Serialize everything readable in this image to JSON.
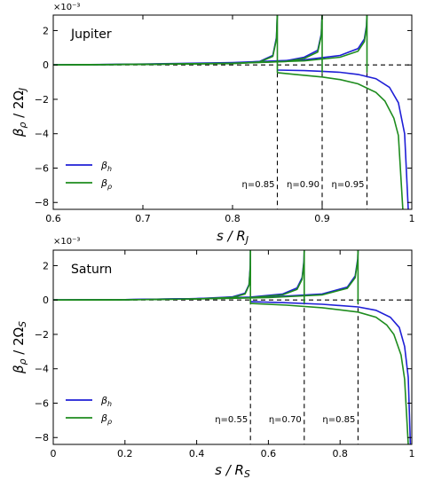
{
  "chart_data": [
    {
      "type": "line",
      "planet_label": "Jupiter",
      "xlabel": "s / R_J",
      "ylabel": "β_ρ / 2Ω_J",
      "multiplier": "×10⁻³",
      "xlim": [
        0.6,
        1.0
      ],
      "ylim": [
        -8.4,
        2.9
      ],
      "xticks": [
        0.6,
        0.7,
        0.8,
        0.9,
        1.0
      ],
      "xtick_labels": [
        "0.6",
        "0.7",
        "0.8",
        "0.9",
        "1"
      ],
      "yticks": [
        2,
        0,
        -2,
        -4,
        -6,
        -8
      ],
      "ytick_labels": [
        "2",
        "0",
        "−2",
        "−4",
        "−6",
        "−8"
      ],
      "legend_position": "lower-left",
      "series": [
        {
          "name": "β_h",
          "color": "#1f1fd6"
        },
        {
          "name": "β_ρ",
          "color": "#1e8c1e"
        }
      ],
      "eta_values": [
        0.85,
        0.9,
        0.95
      ],
      "eta_labels": [
        "η=0.85",
        "η=0.90",
        "η=0.95"
      ],
      "curves": {
        "beta_h_below_eta": [
          {
            "x": [
              0.6,
              0.7,
              0.8,
              0.83,
              0.845,
              0.849,
              0.8499
            ],
            "y": [
              0.0,
              0.03,
              0.1,
              0.2,
              0.55,
              1.6,
              2.9
            ]
          },
          {
            "x": [
              0.6,
              0.7,
              0.8,
              0.86,
              0.88,
              0.895,
              0.899,
              0.8999
            ],
            "y": [
              0.0,
              0.04,
              0.12,
              0.25,
              0.45,
              0.85,
              1.8,
              2.9
            ]
          },
          {
            "x": [
              0.6,
              0.7,
              0.8,
              0.88,
              0.92,
              0.94,
              0.947,
              0.9495,
              0.9499
            ],
            "y": [
              0.0,
              0.05,
              0.14,
              0.3,
              0.55,
              0.95,
              1.5,
              2.3,
              2.9
            ]
          }
        ],
        "beta_h_above_eta": {
          "x": [
            0.85,
            0.88,
            0.9,
            0.92,
            0.94,
            0.96,
            0.975,
            0.985,
            0.992,
            0.996
          ],
          "y": [
            -0.3,
            -0.33,
            -0.37,
            -0.43,
            -0.55,
            -0.8,
            -1.3,
            -2.2,
            -4.0,
            -8.4
          ]
        },
        "beta_rho_below_eta": [
          {
            "x": [
              0.6,
              0.7,
              0.8,
              0.83,
              0.845,
              0.849,
              0.8499
            ],
            "y": [
              0.0,
              0.03,
              0.08,
              0.17,
              0.5,
              1.5,
              2.9
            ]
          },
          {
            "x": [
              0.6,
              0.7,
              0.8,
              0.86,
              0.88,
              0.895,
              0.899,
              0.8999
            ],
            "y": [
              0.0,
              0.03,
              0.09,
              0.2,
              0.38,
              0.75,
              1.7,
              2.9
            ]
          },
          {
            "x": [
              0.6,
              0.7,
              0.8,
              0.88,
              0.92,
              0.94,
              0.947,
              0.9495,
              0.9499
            ],
            "y": [
              0.0,
              0.04,
              0.1,
              0.24,
              0.45,
              0.8,
              1.35,
              2.2,
              2.9
            ]
          }
        ],
        "beta_rho_above_eta": {
          "x": [
            0.85,
            0.87,
            0.9,
            0.92,
            0.94,
            0.96,
            0.97,
            0.98,
            0.985,
            0.99
          ],
          "y": [
            -0.45,
            -0.55,
            -0.7,
            -0.85,
            -1.1,
            -1.6,
            -2.1,
            -3.1,
            -4.1,
            -8.4
          ]
        }
      }
    },
    {
      "type": "line",
      "planet_label": "Saturn",
      "xlabel": "s / R_S",
      "ylabel": "β_ρ / 2Ω_S",
      "multiplier": "×10⁻³",
      "xlim": [
        0.0,
        1.0
      ],
      "ylim": [
        -8.4,
        2.9
      ],
      "xticks": [
        0.0,
        0.2,
        0.4,
        0.6,
        0.8,
        1.0
      ],
      "xtick_labels": [
        "0",
        "0.2",
        "0.4",
        "0.6",
        "0.8",
        "1"
      ],
      "yticks": [
        2,
        0,
        -2,
        -4,
        -6,
        -8
      ],
      "ytick_labels": [
        "2",
        "0",
        "−2",
        "−4",
        "−6",
        "−8"
      ],
      "legend_position": "lower-left",
      "series": [
        {
          "name": "β_h",
          "color": "#1f1fd6"
        },
        {
          "name": "β_ρ",
          "color": "#1e8c1e"
        }
      ],
      "eta_values": [
        0.55,
        0.7,
        0.85
      ],
      "eta_labels": [
        "η=0.55",
        "η=0.70",
        "η=0.85"
      ],
      "curves": {
        "beta_h_below_eta": [
          {
            "x": [
              0.0,
              0.2,
              0.4,
              0.5,
              0.535,
              0.546,
              0.5495,
              0.5499
            ],
            "y": [
              0.0,
              0.02,
              0.08,
              0.18,
              0.4,
              0.9,
              2.0,
              2.9
            ]
          },
          {
            "x": [
              0.0,
              0.2,
              0.4,
              0.55,
              0.64,
              0.68,
              0.694,
              0.6993,
              0.6999
            ],
            "y": [
              0.0,
              0.02,
              0.08,
              0.17,
              0.35,
              0.7,
              1.3,
              2.3,
              2.9
            ]
          },
          {
            "x": [
              0.0,
              0.2,
              0.4,
              0.6,
              0.75,
              0.82,
              0.842,
              0.8493,
              0.8499
            ],
            "y": [
              0.0,
              0.02,
              0.08,
              0.17,
              0.35,
              0.75,
              1.4,
              2.4,
              2.9
            ]
          }
        ],
        "beta_h_above_eta": {
          "x": [
            0.55,
            0.65,
            0.75,
            0.85,
            0.9,
            0.94,
            0.965,
            0.98,
            0.99,
            0.996
          ],
          "y": [
            -0.1,
            -0.16,
            -0.25,
            -0.4,
            -0.6,
            -1.0,
            -1.6,
            -2.7,
            -4.5,
            -8.4
          ]
        },
        "beta_rho_below_eta": [
          {
            "x": [
              0.0,
              0.2,
              0.4,
              0.5,
              0.535,
              0.546,
              0.5495,
              0.5499
            ],
            "y": [
              0.0,
              0.01,
              0.06,
              0.15,
              0.35,
              0.85,
              1.9,
              2.9
            ]
          },
          {
            "x": [
              0.0,
              0.2,
              0.4,
              0.55,
              0.64,
              0.68,
              0.694,
              0.6993,
              0.6999
            ],
            "y": [
              0.0,
              0.01,
              0.06,
              0.14,
              0.3,
              0.62,
              1.2,
              2.2,
              2.9
            ]
          },
          {
            "x": [
              0.0,
              0.2,
              0.4,
              0.6,
              0.75,
              0.82,
              0.842,
              0.8493,
              0.8499
            ],
            "y": [
              0.0,
              0.01,
              0.06,
              0.14,
              0.3,
              0.68,
              1.3,
              2.3,
              2.9
            ]
          }
        ],
        "beta_rho_above_eta": {
          "x": [
            0.55,
            0.65,
            0.75,
            0.85,
            0.9,
            0.93,
            0.95,
            0.97,
            0.98,
            0.99
          ],
          "y": [
            -0.2,
            -0.3,
            -0.45,
            -0.7,
            -1.0,
            -1.45,
            -2.0,
            -3.2,
            -4.6,
            -8.4
          ]
        }
      }
    }
  ]
}
